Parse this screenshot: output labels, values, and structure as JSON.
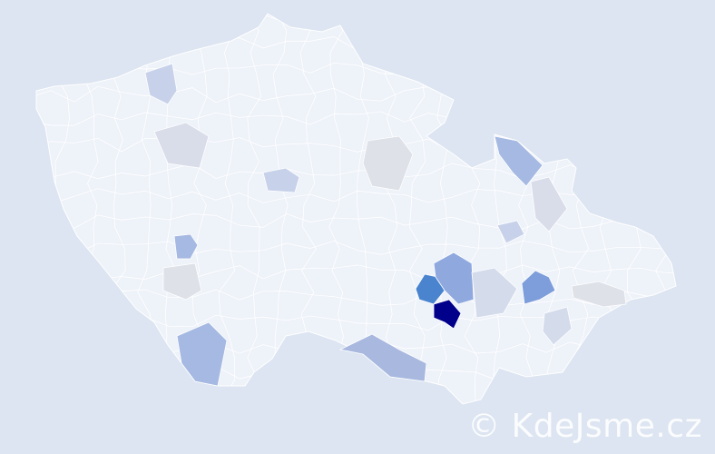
{
  "watermark": "© KdeJsme.cz",
  "colors": {
    "background": "#dce5f1",
    "country_fill": "#eef2f9",
    "border": "#ffffff"
  },
  "highlighted_districts": [
    {
      "color": "#00008b"
    },
    {
      "color": "#4a84cf"
    },
    {
      "color": "#8fa9df"
    },
    {
      "color": "#7d9ddb"
    },
    {
      "color": "#a5b9e2"
    },
    {
      "color": "#a5b9e2"
    },
    {
      "color": "#a8b8df"
    },
    {
      "color": "#a5b9e2"
    },
    {
      "color": "#c7d2ea"
    },
    {
      "color": "#c7d2ea"
    },
    {
      "color": "#d9dde9"
    },
    {
      "color": "#dfe1e9"
    },
    {
      "color": "#dfe1e9"
    },
    {
      "color": "#d4dcec"
    },
    {
      "color": "#d9dde9"
    },
    {
      "color": "#c7d2ea"
    },
    {
      "color": "#d4dcec"
    },
    {
      "color": "#dfe1e9"
    }
  ]
}
